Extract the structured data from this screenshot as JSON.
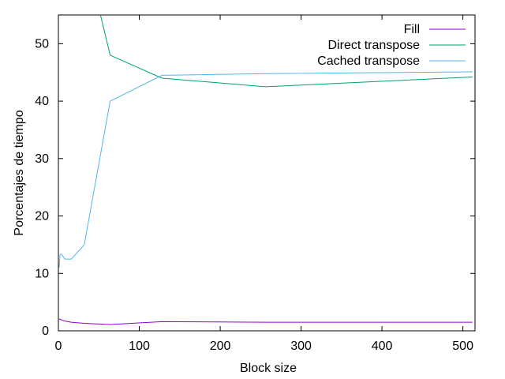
{
  "chart_data": {
    "type": "line",
    "title": "",
    "xlabel": "Block size",
    "ylabel": "Porcentajes de tiempo",
    "xlim": [
      0,
      515
    ],
    "ylim": [
      0,
      55
    ],
    "xticks": [
      0,
      100,
      200,
      300,
      400,
      500
    ],
    "yticks": [
      0,
      10,
      20,
      30,
      40,
      50
    ],
    "grid": false,
    "legend": "top-right",
    "series": [
      {
        "name": "Fill",
        "color": "#9400d3",
        "points": [
          [
            1,
            2.1
          ],
          [
            2,
            2.0
          ],
          [
            4,
            1.9
          ],
          [
            8,
            1.7
          ],
          [
            16,
            1.5
          ],
          [
            32,
            1.3
          ],
          [
            64,
            1.1
          ],
          [
            128,
            1.6
          ],
          [
            256,
            1.5
          ],
          [
            512,
            1.5
          ]
        ]
      },
      {
        "name": "Direct transpose",
        "color": "#009e73",
        "points": [
          [
            52,
            55
          ],
          [
            64,
            48
          ],
          [
            128,
            44
          ],
          [
            256,
            42.5
          ],
          [
            512,
            44.2
          ]
        ]
      },
      {
        "name": "Cached transpose",
        "color": "#56b4e9",
        "points": [
          [
            1,
            11
          ],
          [
            2,
            13.3
          ],
          [
            4,
            13.3
          ],
          [
            8,
            12.5
          ],
          [
            16,
            12.5
          ],
          [
            32,
            15
          ],
          [
            64,
            40
          ],
          [
            128,
            44.5
          ],
          [
            256,
            44.8
          ],
          [
            512,
            45.1
          ]
        ]
      }
    ]
  }
}
